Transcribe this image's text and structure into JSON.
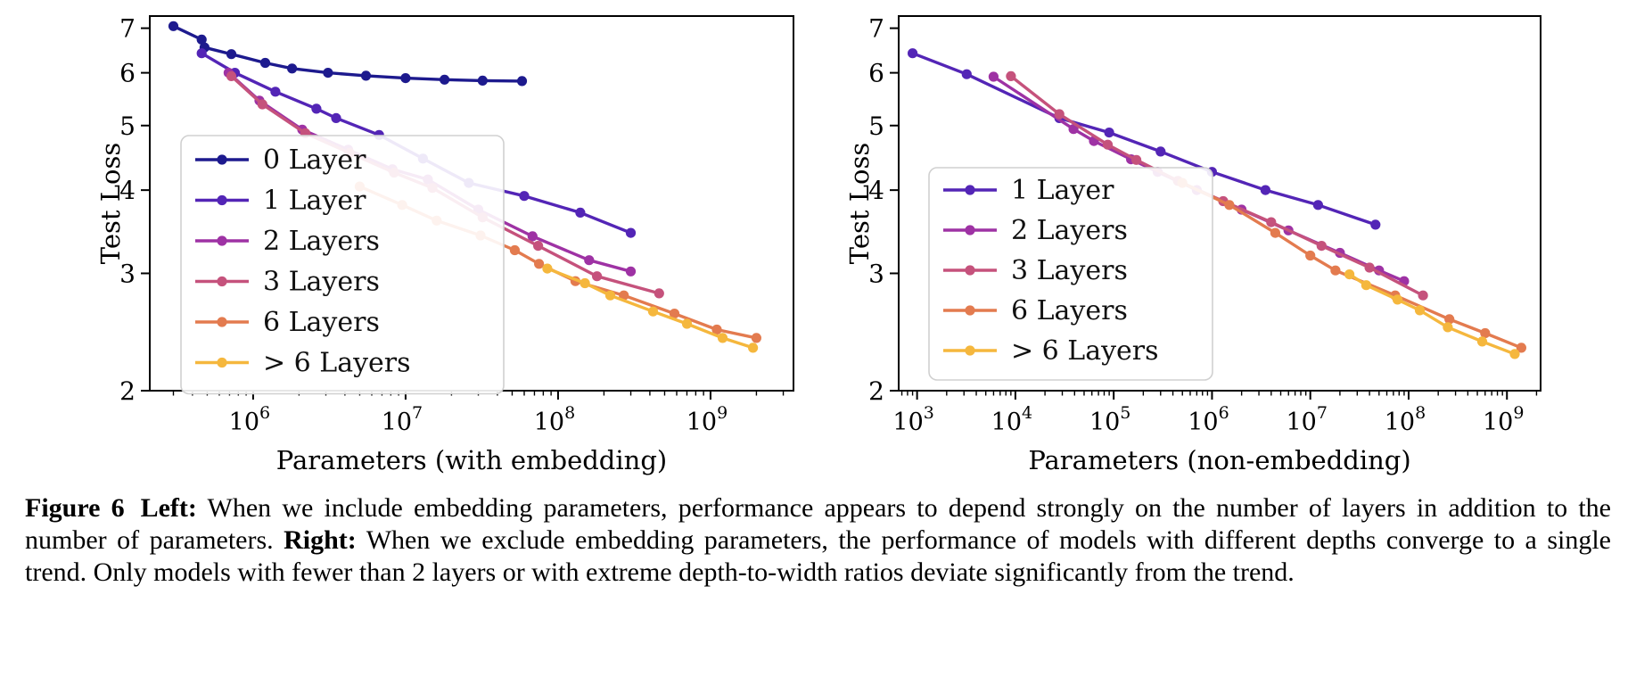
{
  "page": {
    "background": "#ffffff"
  },
  "colors": {
    "layer0": "#1d1a8e",
    "layer1": "#5325b6",
    "layer2": "#9e32a4",
    "layer3": "#c5527c",
    "layer6": "#e37b4f",
    "layer6plus": "#f5b73d",
    "axis": "#000000",
    "legend_border": "#d0d0d0",
    "text": "#000000"
  },
  "chart_data": [
    {
      "type": "line",
      "title": "",
      "xlabel": "Parameters (with embedding)",
      "ylabel": "Test Loss",
      "xscale": "log",
      "yscale": "log",
      "xlim": [
        210000,
        3500000000.0
      ],
      "ylim": [
        2,
        7.3
      ],
      "xticks_exponents": [
        6,
        7,
        8,
        9
      ],
      "yticks": [
        2,
        3,
        4,
        5,
        6,
        7
      ],
      "grid": false,
      "legend_position": "inside lower-left",
      "series": [
        {
          "name": "0 Layer",
          "color_key": "layer0",
          "points": [
            [
              300000.0,
              7.05
            ],
            [
              460000.0,
              6.73
            ],
            [
              480000.0,
              6.55
            ],
            [
              720000.0,
              6.4
            ],
            [
              1200000.0,
              6.21
            ],
            [
              1800000.0,
              6.09
            ],
            [
              3100000.0,
              6.0
            ],
            [
              5500000.0,
              5.94
            ],
            [
              10000000.0,
              5.89
            ],
            [
              18000000.0,
              5.86
            ],
            [
              32000000.0,
              5.84
            ],
            [
              58000000.0,
              5.83
            ]
          ]
        },
        {
          "name": "1 Layer",
          "color_key": "layer1",
          "points": [
            [
              460000.0,
              6.42
            ],
            [
              760000.0,
              6.0
            ],
            [
              1400000.0,
              5.62
            ],
            [
              2600000.0,
              5.3
            ],
            [
              3500000.0,
              5.13
            ],
            [
              6700000.0,
              4.84
            ],
            [
              13000000.0,
              4.46
            ],
            [
              26000000.0,
              4.1
            ],
            [
              60000000.0,
              3.92
            ],
            [
              140000000.0,
              3.7
            ],
            [
              300000000.0,
              3.45
            ]
          ]
        },
        {
          "name": "2 Layers",
          "color_key": "layer2",
          "points": [
            [
              690000.0,
              6.0
            ],
            [
              1100000.0,
              5.45
            ],
            [
              2100000.0,
              4.93
            ],
            [
              4200000.0,
              4.6
            ],
            [
              8200000.0,
              4.3
            ],
            [
              14000000.0,
              4.15
            ],
            [
              30000000.0,
              3.74
            ],
            [
              68000000.0,
              3.41
            ],
            [
              160000000.0,
              3.14
            ],
            [
              300000000.0,
              3.02
            ]
          ]
        },
        {
          "name": "3 Layers",
          "color_key": "layer3",
          "points": [
            [
              720000.0,
              5.93
            ],
            [
              1150000.0,
              5.38
            ],
            [
              2200000.0,
              4.87
            ],
            [
              4300000.0,
              4.55
            ],
            [
              8400000.0,
              4.25
            ],
            [
              15000000.0,
              4.03
            ],
            [
              32000000.0,
              3.64
            ],
            [
              74000000.0,
              3.3
            ],
            [
              180000000.0,
              2.97
            ],
            [
              460000000.0,
              2.8
            ]
          ]
        },
        {
          "name": "6 Layers",
          "color_key": "layer6",
          "points": [
            [
              5000000.0,
              4.05
            ],
            [
              9500000.0,
              3.8
            ],
            [
              16000000.0,
              3.6
            ],
            [
              31000000.0,
              3.42
            ],
            [
              52000000.0,
              3.25
            ],
            [
              75000000.0,
              3.1
            ],
            [
              130000000.0,
              2.92
            ],
            [
              270000000.0,
              2.78
            ],
            [
              580000000.0,
              2.61
            ],
            [
              1100000000.0,
              2.47
            ],
            [
              2000000000.0,
              2.4
            ]
          ]
        },
        {
          "name": "> 6 Layers",
          "color_key": "layer6plus",
          "points": [
            [
              85000000.0,
              3.05
            ],
            [
              150000000.0,
              2.9
            ],
            [
              220000000.0,
              2.78
            ],
            [
              420000000.0,
              2.63
            ],
            [
              700000000.0,
              2.52
            ],
            [
              1200000000.0,
              2.4
            ],
            [
              1900000000.0,
              2.32
            ]
          ]
        }
      ]
    },
    {
      "type": "line",
      "title": "",
      "xlabel": "Parameters (non-embedding)",
      "ylabel": "Test Loss",
      "xscale": "log",
      "yscale": "log",
      "xlim": [
        650,
        2200000000.0
      ],
      "ylim": [
        2,
        7.3
      ],
      "xticks_exponents": [
        3,
        4,
        5,
        6,
        7,
        8,
        9
      ],
      "yticks": [
        2,
        3,
        4,
        5,
        6,
        7
      ],
      "grid": false,
      "legend_position": "inside lower-left",
      "series": [
        {
          "name": "1 Layer",
          "color_key": "layer1",
          "points": [
            [
              900.0,
              6.42
            ],
            [
              3200.0,
              5.97
            ],
            [
              28000.0,
              5.13
            ],
            [
              90000.0,
              4.88
            ],
            [
              300000.0,
              4.57
            ],
            [
              1000000.0,
              4.26
            ],
            [
              3500000.0,
              4.0
            ],
            [
              12000000.0,
              3.8
            ],
            [
              46000000.0,
              3.55
            ]
          ]
        },
        {
          "name": "2 Layers",
          "color_key": "layer2",
          "points": [
            [
              6000.0,
              5.92
            ],
            [
              39000.0,
              4.94
            ],
            [
              63000.0,
              4.74
            ],
            [
              150000.0,
              4.45
            ],
            [
              280000.0,
              4.26
            ],
            [
              700000.0,
              4.0
            ],
            [
              2000000.0,
              3.74
            ],
            [
              6000000.0,
              3.48
            ],
            [
              20000000.0,
              3.22
            ],
            [
              50000000.0,
              3.03
            ],
            [
              90000000.0,
              2.92
            ]
          ]
        },
        {
          "name": "3 Layers",
          "color_key": "layer3",
          "points": [
            [
              9000.0,
              5.93
            ],
            [
              28000.0,
              5.2
            ],
            [
              87000.0,
              4.68
            ],
            [
              170000.0,
              4.44
            ],
            [
              450000.0,
              4.13
            ],
            [
              1300000.0,
              3.85
            ],
            [
              4000000.0,
              3.58
            ],
            [
              13000000.0,
              3.3
            ],
            [
              40000000.0,
              3.06
            ],
            [
              140000000.0,
              2.78
            ]
          ]
        },
        {
          "name": "6 Layers",
          "color_key": "layer6",
          "points": [
            [
              500000.0,
              4.1
            ],
            [
              1500000.0,
              3.8
            ],
            [
              4400000.0,
              3.45
            ],
            [
              10000000.0,
              3.19
            ],
            [
              18000000.0,
              3.03
            ],
            [
              73000000.0,
              2.78
            ],
            [
              260000000.0,
              2.56
            ],
            [
              600000000.0,
              2.44
            ],
            [
              1400000000.0,
              2.32
            ]
          ]
        },
        {
          "name": "> 6 Layers",
          "color_key": "layer6plus",
          "points": [
            [
              25000000.0,
              2.99
            ],
            [
              37000000.0,
              2.88
            ],
            [
              77000000.0,
              2.74
            ],
            [
              130000000.0,
              2.64
            ],
            [
              250000000.0,
              2.49
            ],
            [
              560000000.0,
              2.37
            ],
            [
              1200000000.0,
              2.27
            ]
          ]
        }
      ]
    }
  ],
  "caption": {
    "figure_label": "Figure 6",
    "sections": [
      {
        "bold": "Left:",
        "text": "When we include embedding parameters, performance appears to depend strongly on the number of layers in addition to the number of parameters."
      },
      {
        "bold": "Right:",
        "text": "When we exclude embedding parameters, the performance of models with different depths converge to a single trend. Only models with fewer than 2 layers or with extreme depth-to-width ratios deviate significantly from the trend."
      }
    ]
  }
}
